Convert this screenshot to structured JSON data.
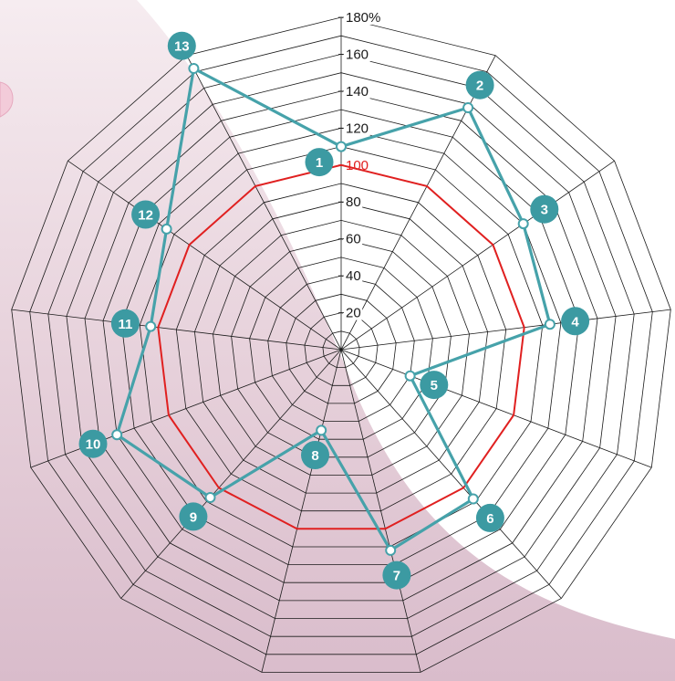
{
  "chart_data": {
    "type": "radar",
    "title": "",
    "categories": [
      "1",
      "2",
      "3",
      "4",
      "5",
      "6",
      "7",
      "8",
      "9",
      "10",
      "11",
      "12",
      "13"
    ],
    "series": [
      {
        "values": [
          110,
          148,
          120,
          114,
          40,
          108,
          112,
          45,
          107,
          130,
          104,
          115,
          172
        ]
      }
    ],
    "reference": {
      "value": 100,
      "label": "100"
    },
    "rlim": [
      0,
      180
    ],
    "ticks": [
      "20",
      "40",
      "60",
      "80",
      "100",
      "120",
      "140",
      "160",
      "180%"
    ],
    "tick_values": [
      20,
      40,
      60,
      80,
      100,
      120,
      140,
      160,
      180
    ],
    "grid": true,
    "legend": "none"
  },
  "colors": {
    "series": "#46a2aa",
    "badge": "#3c9aa2",
    "reference": "#e02020",
    "grid": "#1a1a1a",
    "background_swoosh": "#dfc4d1",
    "background_light": "#f4e6ec"
  }
}
